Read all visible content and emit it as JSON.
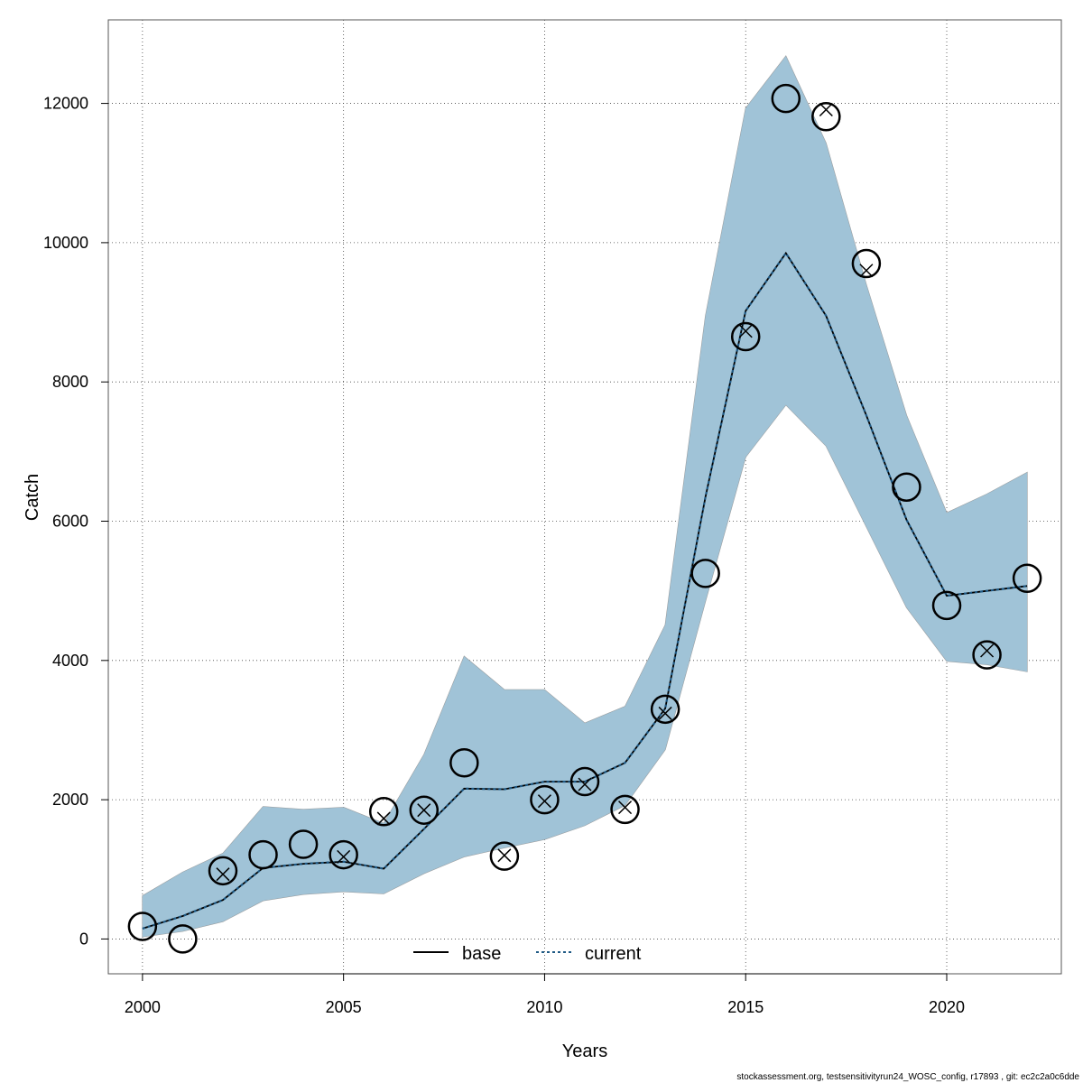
{
  "chart_data": {
    "type": "line",
    "xlabel": "Years",
    "ylabel": "Catch",
    "xlim": [
      1999.15,
      2022.85
    ],
    "ylim": [
      -500,
      13200
    ],
    "x_ticks": [
      2000,
      2005,
      2010,
      2015,
      2020
    ],
    "y_ticks": [
      0,
      2000,
      4000,
      6000,
      8000,
      10000,
      12000
    ],
    "grid": true,
    "legend_position": "bottom-center",
    "colors": {
      "band_base": "#a9a9a9",
      "band_current": "#9ec5db",
      "line_base": "#000000",
      "line_current": "#1f5a85",
      "observed": "#000000"
    },
    "x": [
      2000,
      2001,
      2002,
      2003,
      2004,
      2005,
      2006,
      2007,
      2008,
      2009,
      2010,
      2011,
      2012,
      2013,
      2014,
      2015,
      2016,
      2017,
      2018,
      2019,
      2020,
      2021,
      2022
    ],
    "series": [
      {
        "name": "base",
        "values": [
          150,
          330,
          560,
          1020,
          1080,
          1110,
          1010,
          1580,
          2160,
          2150,
          2260,
          2260,
          2530,
          3310,
          6350,
          9020,
          9850,
          8950,
          7520,
          6020,
          4930,
          5000,
          5070
        ],
        "lower": [
          30,
          110,
          250,
          550,
          640,
          680,
          650,
          940,
          1180,
          1310,
          1430,
          1630,
          1920,
          2720,
          4850,
          6920,
          7670,
          7080,
          5920,
          4760,
          3990,
          3940,
          3840
        ],
        "upper": [
          620,
          960,
          1230,
          1900,
          1860,
          1890,
          1660,
          2650,
          4060,
          3580,
          3580,
          3100,
          3340,
          4510,
          8950,
          11930,
          12680,
          11430,
          9400,
          7520,
          6120,
          6390,
          6700
        ]
      },
      {
        "name": "current",
        "values": [
          150,
          330,
          560,
          1020,
          1080,
          1110,
          1010,
          1580,
          2160,
          2150,
          2260,
          2260,
          2530,
          3310,
          6350,
          9020,
          9850,
          8950,
          7520,
          6020,
          4930,
          5000,
          5070
        ],
        "lower": [
          30,
          110,
          250,
          550,
          640,
          680,
          650,
          940,
          1180,
          1310,
          1430,
          1630,
          1920,
          2720,
          4850,
          6920,
          7670,
          7080,
          5920,
          4760,
          3990,
          3940,
          3840
        ],
        "upper": [
          620,
          960,
          1230,
          1900,
          1860,
          1890,
          1660,
          2650,
          4060,
          3580,
          3580,
          3100,
          3340,
          4510,
          8950,
          11930,
          12680,
          11430,
          9400,
          7520,
          6120,
          6390,
          6700
        ]
      }
    ],
    "observed_circles": [
      180,
      0,
      980,
      1210,
      1360,
      1210,
      1830,
      1850,
      2530,
      1190,
      2000,
      2260,
      1860,
      3300,
      5250,
      8650,
      12070,
      11810,
      9700,
      6490,
      4790,
      4080,
      5180
    ],
    "observed_crosses": [
      null,
      null,
      930,
      null,
      null,
      1180,
      1730,
      1850,
      null,
      1200,
      1980,
      2220,
      1890,
      3240,
      null,
      8730,
      null,
      11910,
      9600,
      null,
      null,
      4140,
      null
    ]
  },
  "footer_text": "stockassessment.org, testsensitivityrun24_WOSC_config, r17893 , git: ec2c2a0c6dde"
}
